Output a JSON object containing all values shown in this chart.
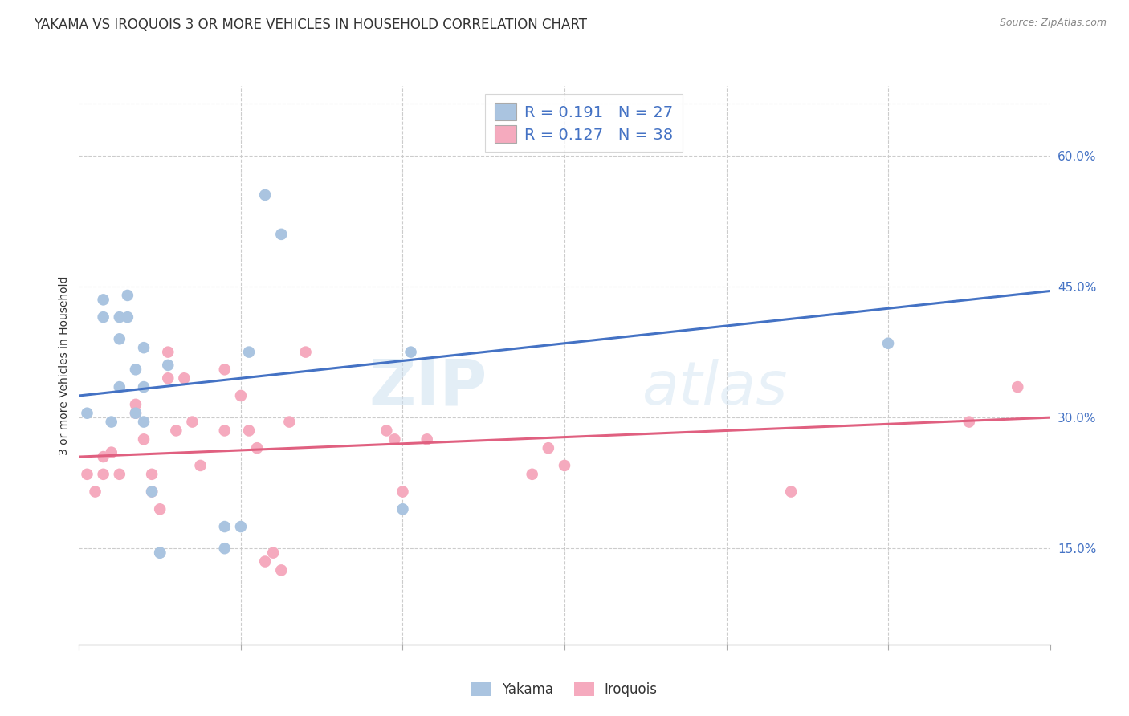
{
  "title": "YAKAMA VS IROQUOIS 3 OR MORE VEHICLES IN HOUSEHOLD CORRELATION CHART",
  "source": "Source: ZipAtlas.com",
  "ylabel": "3 or more Vehicles in Household",
  "ytick_labels": [
    "15.0%",
    "30.0%",
    "45.0%",
    "60.0%"
  ],
  "ytick_values": [
    0.15,
    0.3,
    0.45,
    0.6
  ],
  "xmin": 0.0,
  "xmax": 0.6,
  "ymin": 0.04,
  "ymax": 0.68,
  "legend_line1": "R = 0.191   N = 27",
  "legend_line2": "R = 0.127   N = 38",
  "yakama_color": "#aac4e0",
  "iroquois_color": "#f5aabe",
  "yakama_line_color": "#4472c4",
  "iroquois_line_color": "#e06080",
  "watermark_zip": "ZIP",
  "watermark_atlas": "atlas",
  "yakama_x": [
    0.005,
    0.015,
    0.015,
    0.02,
    0.025,
    0.025,
    0.025,
    0.03,
    0.03,
    0.035,
    0.035,
    0.04,
    0.04,
    0.04,
    0.045,
    0.05,
    0.05,
    0.055,
    0.09,
    0.09,
    0.1,
    0.105,
    0.115,
    0.125,
    0.2,
    0.205,
    0.5
  ],
  "yakama_y": [
    0.305,
    0.435,
    0.415,
    0.295,
    0.415,
    0.39,
    0.335,
    0.44,
    0.415,
    0.355,
    0.305,
    0.38,
    0.335,
    0.295,
    0.215,
    0.145,
    0.145,
    0.36,
    0.175,
    0.15,
    0.175,
    0.375,
    0.555,
    0.51,
    0.195,
    0.375,
    0.385
  ],
  "iroquois_x": [
    0.005,
    0.01,
    0.015,
    0.015,
    0.02,
    0.025,
    0.035,
    0.035,
    0.04,
    0.045,
    0.045,
    0.05,
    0.055,
    0.055,
    0.06,
    0.065,
    0.07,
    0.075,
    0.09,
    0.09,
    0.1,
    0.105,
    0.11,
    0.115,
    0.12,
    0.125,
    0.13,
    0.14,
    0.19,
    0.195,
    0.2,
    0.215,
    0.28,
    0.29,
    0.3,
    0.44,
    0.55,
    0.58
  ],
  "iroquois_y": [
    0.235,
    0.215,
    0.255,
    0.235,
    0.26,
    0.235,
    0.315,
    0.305,
    0.275,
    0.235,
    0.215,
    0.195,
    0.375,
    0.345,
    0.285,
    0.345,
    0.295,
    0.245,
    0.355,
    0.285,
    0.325,
    0.285,
    0.265,
    0.135,
    0.145,
    0.125,
    0.295,
    0.375,
    0.285,
    0.275,
    0.215,
    0.275,
    0.235,
    0.265,
    0.245,
    0.215,
    0.295,
    0.335
  ],
  "background_color": "#ffffff",
  "grid_color": "#cccccc",
  "title_fontsize": 12,
  "label_fontsize": 10,
  "tick_fontsize": 11,
  "dot_size": 110,
  "yakama_label": "Yakama",
  "iroquois_label": "Iroquois"
}
